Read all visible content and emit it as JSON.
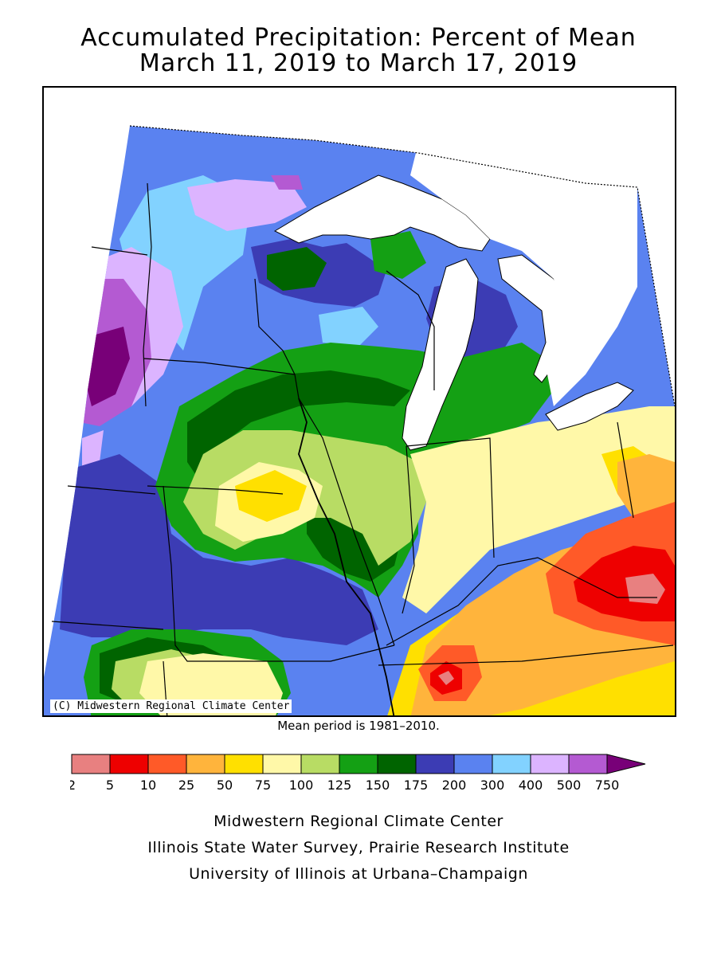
{
  "title_line1": "Accumulated Precipitation: Percent of Mean",
  "title_line2": "March 11, 2019 to March 17, 2019",
  "copyright": "(C) Midwestern Regional Climate Center",
  "mean_note": "Mean period is 1981–2010.",
  "legend": {
    "ticks": [
      "2",
      "5",
      "10",
      "25",
      "50",
      "75",
      "100",
      "125",
      "150",
      "175",
      "200",
      "300",
      "400",
      "500",
      "750"
    ],
    "colors": [
      "#e88080",
      "#ee0000",
      "#ff5a28",
      "#ffb43c",
      "#ffe000",
      "#fff8a8",
      "#b8dc64",
      "#14a014",
      "#006400",
      "#3c3cb4",
      "#5a82f0",
      "#82d2ff",
      "#dcb4ff",
      "#b45ad2",
      "#780078"
    ]
  },
  "credits": {
    "line1": "Midwestern Regional Climate Center",
    "line2": "Illinois State Water Survey, Prairie Research Institute",
    "line3": "University of Illinois at Urbana–Champaign"
  }
}
